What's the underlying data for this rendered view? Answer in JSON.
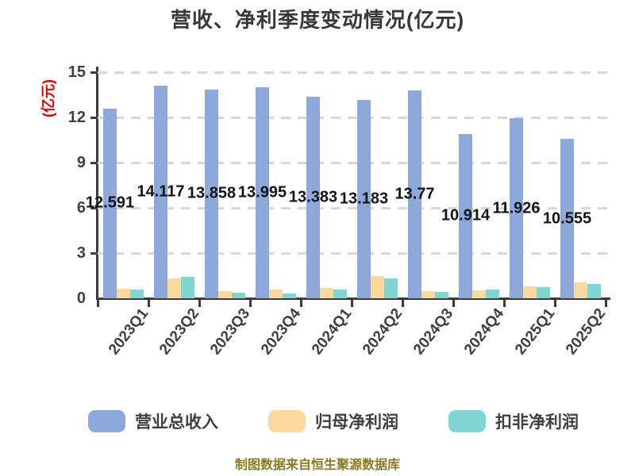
{
  "header": {
    "title": "营收、净利季度变动情况(亿元)"
  },
  "footer": {
    "text": "制图数据来自恒生聚源数据库",
    "color": "#8C7A1E"
  },
  "legend": {
    "items": [
      {
        "label": "营业总收入",
        "color": "#8DA8DB"
      },
      {
        "label": "归母净利润",
        "color": "#FBD89B"
      },
      {
        "label": "扣非净利润",
        "color": "#7FD5D1"
      }
    ]
  },
  "colors": {
    "axis": "#3B3B3B",
    "grid": "#D8D8D8",
    "tick_label": "#3F3F3F",
    "value_label": "#141414",
    "title": "#383838",
    "ylabel": "#E60000"
  },
  "chart_data": {
    "type": "bar",
    "title": "营收、净利季度变动情况(亿元)",
    "ylabel": "(亿元)",
    "xlabel": "",
    "categories": [
      "2023Q1",
      "2023Q2",
      "2023Q3",
      "2023Q4",
      "2024Q1",
      "2024Q2",
      "2024Q3",
      "2024Q4",
      "2025Q1",
      "2025Q2"
    ],
    "series": [
      {
        "name": "营业总收入",
        "color": "#8DA8DB",
        "values": [
          12.591,
          14.117,
          13.858,
          13.995,
          13.383,
          13.183,
          13.77,
          10.914,
          11.926,
          10.555
        ],
        "data_labels": [
          "12.591",
          "14.117",
          "13.858",
          "13.995",
          "13.383",
          "13.183",
          "13.77",
          "10.914",
          "11.926",
          "10.555"
        ]
      },
      {
        "name": "归母净利润",
        "color": "#FBD89B",
        "values": [
          0.65,
          1.33,
          0.45,
          0.6,
          0.68,
          1.5,
          0.5,
          0.55,
          0.8,
          1.05
        ]
      },
      {
        "name": "扣非净利润",
        "color": "#7FD5D1",
        "values": [
          0.58,
          1.42,
          0.35,
          0.3,
          0.6,
          1.3,
          0.4,
          0.58,
          0.75,
          0.95
        ]
      }
    ],
    "ylim": [
      0,
      15
    ],
    "yticks": [
      0,
      3,
      6,
      9,
      12,
      15
    ],
    "grid": "horizontal-dashed",
    "legend_position": "bottom",
    "value_labels_shown_for": "营业总收入",
    "value_label_placement": "centered-at-bar-midheight"
  }
}
